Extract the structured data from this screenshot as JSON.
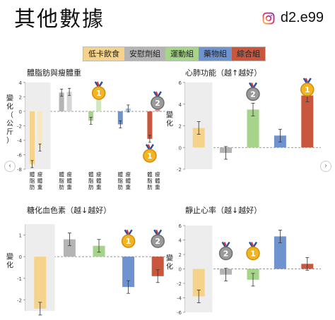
{
  "header": {
    "title": "其他數據",
    "brand_handle": "d2.e99",
    "brand_icon": "instagram-icon"
  },
  "legend": [
    {
      "label": "低卡飲食",
      "color": "#f5d38a"
    },
    {
      "label": "安慰劑組",
      "color": "#b4b4b4"
    },
    {
      "label": "運動組",
      "color": "#a6d48a"
    },
    {
      "label": "藥物組",
      "color": "#6f93cf"
    },
    {
      "label": "綜合組",
      "color": "#c8573d"
    }
  ],
  "nav": {
    "left": "‹",
    "right": "›"
  },
  "chart_data": [
    {
      "type": "bar",
      "title": "體脂肪與瘦體重",
      "ylabel": "變化（公斤）",
      "ylim": [
        -8,
        4
      ],
      "yticks": [
        -8,
        -6,
        -4,
        -2,
        0,
        2,
        4
      ],
      "categories": [
        "體脂肪",
        "瘦體重"
      ],
      "series": [
        {
          "name": "低卡飲食",
          "values": [
            -7.3,
            -5.0
          ]
        },
        {
          "name": "安慰劑組",
          "values": [
            2.6,
            2.7
          ]
        },
        {
          "name": "運動組",
          "values": [
            -1.3,
            2.5
          ]
        },
        {
          "name": "藥物組",
          "values": [
            -1.8,
            0.4
          ]
        },
        {
          "name": "綜合組",
          "values": [
            -3.8,
            0.8
          ]
        }
      ],
      "medals": [
        {
          "rank": "1",
          "position": "above 運動組 瘦體重"
        },
        {
          "rank": "2",
          "position": "above 綜合組 瘦體重"
        },
        {
          "rank": "1",
          "position": "below 綜合組 體脂肪"
        }
      ]
    },
    {
      "type": "bar",
      "title": "心肺功能（越↑越好）",
      "ylabel": "變化",
      "ylim": [
        -2,
        6
      ],
      "yticks": [
        -2,
        0,
        2,
        4,
        6
      ],
      "categories": [
        "低卡飲食",
        "安慰劑組",
        "運動組",
        "藥物組",
        "綜合組"
      ],
      "values": [
        1.8,
        -0.5,
        3.5,
        1.1,
        4.8
      ],
      "medals": [
        {
          "rank": "2",
          "position": "運動組"
        },
        {
          "rank": "1",
          "position": "綜合組"
        }
      ]
    },
    {
      "type": "bar",
      "title": "糖化血色素（越↓越好）",
      "ylabel": "變化",
      "ylim": [
        -2.5,
        1.5
      ],
      "yticks": [
        -2,
        -1,
        0,
        1
      ],
      "categories": [
        "低卡飲食",
        "安慰劑組",
        "運動組",
        "藥物組",
        "綜合組"
      ],
      "values": [
        -2.4,
        0.8,
        0.5,
        -1.4,
        -0.9
      ],
      "medals": [
        {
          "rank": "1",
          "position": "藥物組"
        },
        {
          "rank": "2",
          "position": "綜合組"
        }
      ]
    },
    {
      "type": "bar",
      "title": "靜止心率（越↓越好）",
      "ylabel": "變化",
      "ylim": [
        -6,
        6
      ],
      "yticks": [
        -6,
        -4,
        -2,
        0,
        2,
        4,
        6
      ],
      "categories": [
        "低卡飲食",
        "安慰劑組",
        "運動組",
        "藥物組",
        "綜合組"
      ],
      "values": [
        -3.8,
        -0.8,
        -1.5,
        4.5,
        0.7
      ],
      "medals": [
        {
          "rank": "2",
          "position": "安慰劑組"
        },
        {
          "rank": "1",
          "position": "運動組"
        }
      ]
    }
  ]
}
